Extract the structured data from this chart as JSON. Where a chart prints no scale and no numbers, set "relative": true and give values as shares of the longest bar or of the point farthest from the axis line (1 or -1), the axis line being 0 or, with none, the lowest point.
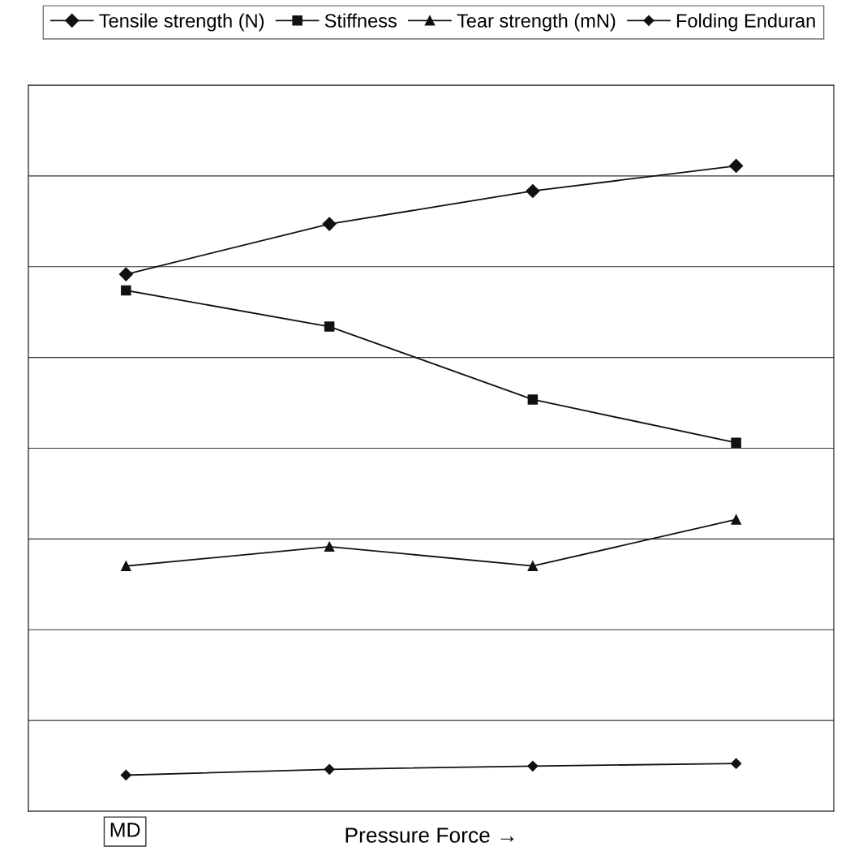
{
  "chart_data": {
    "type": "line",
    "relative": true,
    "xlabel": "Pressure Force →",
    "categories": [
      null,
      null,
      null,
      null
    ],
    "series": [
      {
        "name": "Tensile strength (N)",
        "color": "#111111",
        "marker": "diamond",
        "values": [
          0.832,
          0.91,
          0.961,
          1
        ]
      },
      {
        "name": "Stiffness",
        "color": "#111111",
        "marker": "square",
        "values": [
          0.807,
          0.751,
          0.638,
          0.571
        ]
      },
      {
        "name": "Tear strength (mN)",
        "color": "#111111",
        "marker": "triangle",
        "values": [
          0.38,
          0.41,
          0.38,
          0.452
        ]
      },
      {
        "name": "Folding Enduran",
        "color": "#111111",
        "marker": "diamond",
        "values": [
          0.056,
          0.065,
          0.07,
          0.074
        ]
      }
    ],
    "annotations": [
      "MD"
    ],
    "grid": "y",
    "legend": "top",
    "line_style": "solid",
    "tick_labels": false
  }
}
